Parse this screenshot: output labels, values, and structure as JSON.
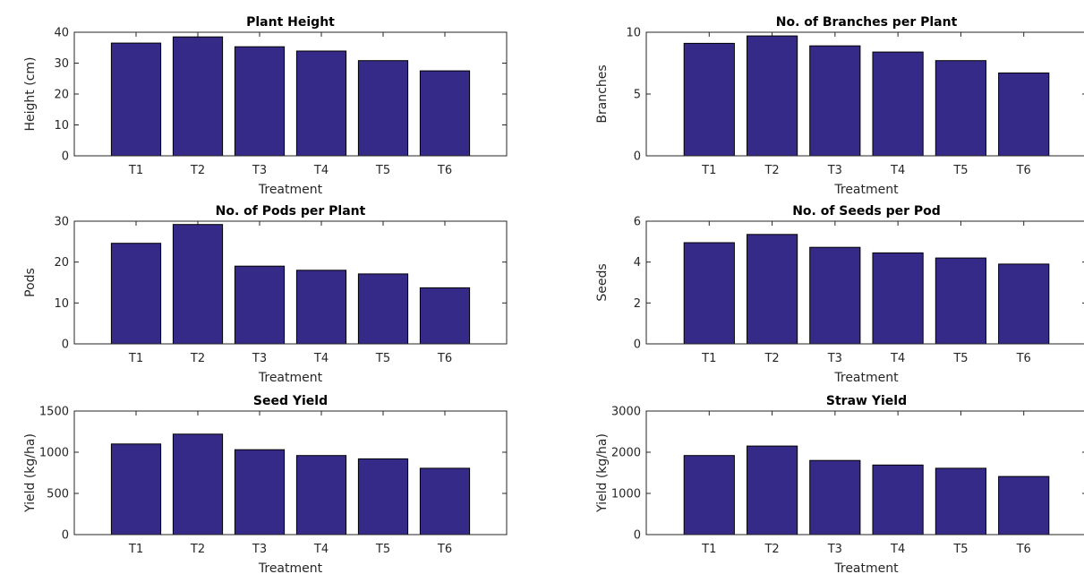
{
  "figure": {
    "background": "#ffffff",
    "bar_color": "#352a87"
  },
  "chart_data": [
    {
      "type": "bar",
      "title": "Plant Height",
      "xlabel": "Treatment",
      "ylabel": "Height (cm)",
      "categories": [
        "T1",
        "T2",
        "T3",
        "T4",
        "T5",
        "T6"
      ],
      "values": [
        36.5,
        38.5,
        35.3,
        33.9,
        30.8,
        27.5
      ],
      "ylim": [
        0,
        40
      ],
      "yticks": [
        0,
        10,
        20,
        30,
        40
      ],
      "grid": false
    },
    {
      "type": "bar",
      "title": "No. of Branches per Plant",
      "xlabel": "Treatment",
      "ylabel": "Branches",
      "categories": [
        "T1",
        "T2",
        "T3",
        "T4",
        "T5",
        "T6"
      ],
      "values": [
        9.1,
        9.7,
        8.9,
        8.4,
        7.7,
        6.7
      ],
      "ylim": [
        0,
        10
      ],
      "yticks": [
        0,
        5,
        10
      ],
      "grid": false
    },
    {
      "type": "bar",
      "title": "No. of Pods per Plant",
      "xlabel": "Treatment",
      "ylabel": "Pods",
      "categories": [
        "T1",
        "T2",
        "T3",
        "T4",
        "T5",
        "T6"
      ],
      "values": [
        24.6,
        29.2,
        19.0,
        18.0,
        17.1,
        13.7
      ],
      "ylim": [
        0,
        30
      ],
      "yticks": [
        0,
        10,
        20,
        30
      ],
      "grid": false
    },
    {
      "type": "bar",
      "title": "No. of Seeds per Pod",
      "xlabel": "Treatment",
      "ylabel": "Seeds",
      "categories": [
        "T1",
        "T2",
        "T3",
        "T4",
        "T5",
        "T6"
      ],
      "values": [
        4.95,
        5.35,
        4.72,
        4.45,
        4.2,
        3.9
      ],
      "ylim": [
        0,
        6
      ],
      "yticks": [
        0,
        2,
        4,
        6
      ],
      "grid": false
    },
    {
      "type": "bar",
      "title": "Seed Yield",
      "xlabel": "Treatment",
      "ylabel": "Yield (kg/ha)",
      "categories": [
        "T1",
        "T2",
        "T3",
        "T4",
        "T5",
        "T6"
      ],
      "values": [
        1100,
        1220,
        1030,
        960,
        920,
        805
      ],
      "ylim": [
        0,
        1500
      ],
      "yticks": [
        0,
        500,
        1000,
        1500
      ],
      "grid": false
    },
    {
      "type": "bar",
      "title": "Straw Yield",
      "xlabel": "Treatment",
      "ylabel": "Yield (kg/ha)",
      "categories": [
        "T1",
        "T2",
        "T3",
        "T4",
        "T5",
        "T6"
      ],
      "values": [
        1920,
        2150,
        1800,
        1690,
        1610,
        1410
      ],
      "ylim": [
        0,
        3000
      ],
      "yticks": [
        0,
        1000,
        2000,
        3000
      ],
      "grid": false
    }
  ]
}
